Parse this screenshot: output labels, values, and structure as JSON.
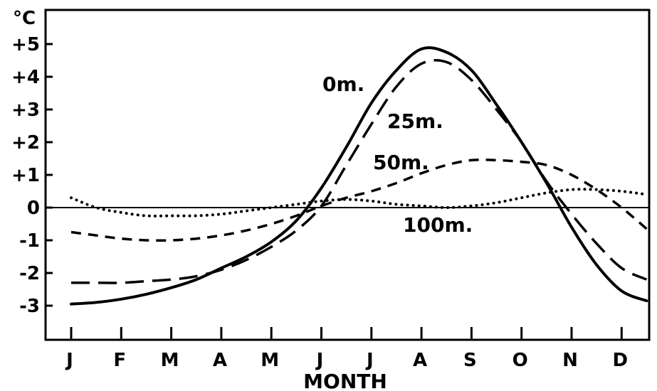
{
  "chart_data": {
    "type": "line",
    "title": "",
    "xlabel": "MONTH",
    "ylabel": "°C",
    "categories": [
      "J",
      "F",
      "M",
      "A",
      "M",
      "J",
      "J",
      "A",
      "S",
      "O",
      "N",
      "D"
    ],
    "ylim": [
      -3.8,
      6.2
    ],
    "yticks": [
      "+5",
      "+4",
      "+3",
      "+2",
      "+1",
      "0",
      "-1",
      "-2",
      "-3"
    ],
    "ytick_values": [
      5,
      4,
      3,
      2,
      1,
      0,
      -1,
      -2,
      -3
    ],
    "zero_line": true,
    "grid": false,
    "legend": "inline labels",
    "series": [
      {
        "name": "0m.",
        "style": "solid",
        "x": [
          0,
          0.5,
          1,
          1.5,
          2,
          2.5,
          3,
          3.5,
          4,
          4.5,
          5,
          5.5,
          6,
          6.5,
          7,
          7.5,
          8,
          8.5,
          9,
          9.5,
          10,
          10.5,
          11,
          11.5
        ],
        "values": [
          -2.95,
          -2.9,
          -2.8,
          -2.65,
          -2.45,
          -2.2,
          -1.85,
          -1.5,
          -1.05,
          -0.4,
          0.6,
          1.85,
          3.2,
          4.2,
          4.85,
          4.75,
          4.2,
          3.15,
          2.0,
          0.75,
          -0.6,
          -1.75,
          -2.55,
          -2.85
        ]
      },
      {
        "name": "25m.",
        "style": "long-dash",
        "x": [
          0,
          0.5,
          1,
          1.5,
          2,
          2.5,
          3,
          3.5,
          4,
          4.5,
          5,
          5.5,
          6,
          6.5,
          7,
          7.5,
          8,
          8.5,
          9,
          9.5,
          10,
          10.5,
          11,
          11.5
        ],
        "values": [
          -2.3,
          -2.3,
          -2.3,
          -2.25,
          -2.2,
          -2.1,
          -1.9,
          -1.6,
          -1.2,
          -0.7,
          0.05,
          1.3,
          2.55,
          3.7,
          4.4,
          4.45,
          3.9,
          3.0,
          2.0,
          0.8,
          -0.2,
          -1.1,
          -1.85,
          -2.2
        ]
      },
      {
        "name": "50m.",
        "style": "medium-dash",
        "x": [
          0,
          0.5,
          1,
          1.5,
          2,
          2.5,
          3,
          3.5,
          4,
          4.5,
          5,
          5.5,
          6,
          6.5,
          7,
          7.5,
          8,
          8.5,
          9,
          9.5,
          10,
          10.5,
          11,
          11.5
        ],
        "values": [
          -0.75,
          -0.85,
          -0.95,
          -1.0,
          -1.0,
          -0.95,
          -0.85,
          -0.7,
          -0.5,
          -0.25,
          0.05,
          0.3,
          0.5,
          0.75,
          1.05,
          1.3,
          1.45,
          1.45,
          1.4,
          1.3,
          1.0,
          0.55,
          0.0,
          -0.65
        ]
      },
      {
        "name": "100m.",
        "style": "dotted",
        "x": [
          0,
          0.5,
          1,
          1.5,
          2,
          2.5,
          3,
          3.5,
          4,
          4.5,
          5,
          5.5,
          6,
          6.5,
          7,
          7.5,
          8,
          8.5,
          9,
          9.5,
          10,
          10.5,
          11,
          11.5
        ],
        "values": [
          0.3,
          0.0,
          -0.15,
          -0.25,
          -0.25,
          -0.25,
          -0.2,
          -0.1,
          0.0,
          0.1,
          0.2,
          0.25,
          0.2,
          0.1,
          0.05,
          0.0,
          0.05,
          0.15,
          0.3,
          0.45,
          0.55,
          0.55,
          0.5,
          0.4
        ]
      }
    ]
  }
}
